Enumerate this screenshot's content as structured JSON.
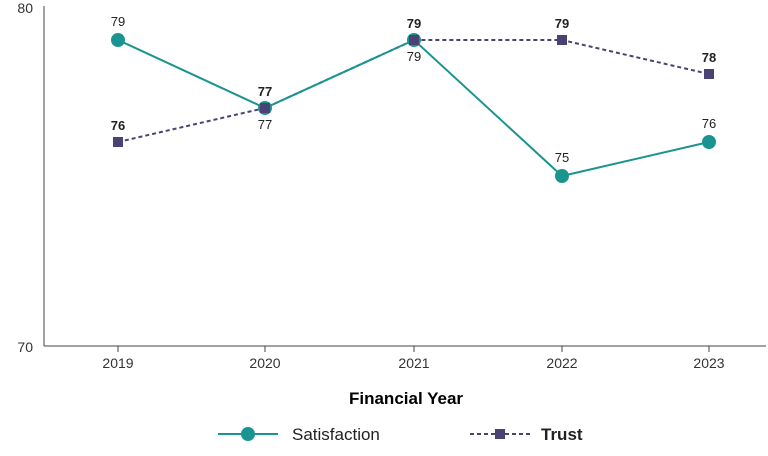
{
  "chart_data": {
    "type": "line",
    "categories": [
      "2019",
      "2020",
      "2021",
      "2022",
      "2023"
    ],
    "series": [
      {
        "name": "Satisfaction",
        "values": [
          79,
          77,
          79,
          75,
          76
        ],
        "color": "#1a9490",
        "marker": "circle",
        "line": "solid"
      },
      {
        "name": "Trust",
        "values": [
          76,
          77,
          79,
          79,
          78
        ],
        "color": "#4a4272",
        "marker": "square",
        "line": "dashed"
      }
    ],
    "xlabel": "Financial Year",
    "ylabel": "",
    "ylim": [
      70,
      80
    ],
    "yticks": [
      "70",
      "80"
    ],
    "grid": false,
    "legend": "bottom",
    "data_labels": true
  }
}
